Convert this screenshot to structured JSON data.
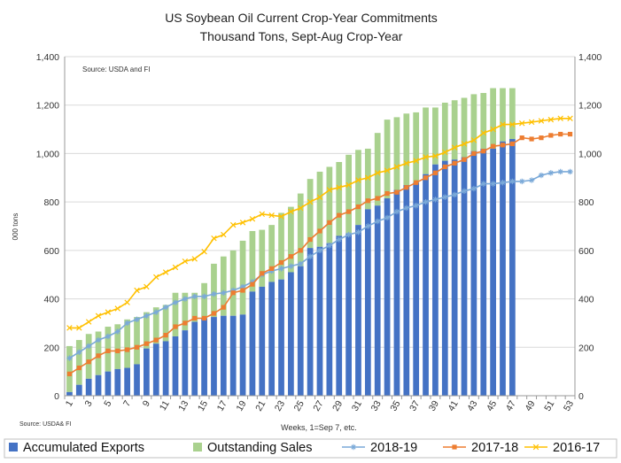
{
  "chart_data": {
    "type": "bar",
    "title": "US Soybean Oil Current Crop-Year Commitments",
    "subtitle": "Thousand Tons, Sept-Aug Crop-Year",
    "xlabel": "Weeks, 1=Sep 7, etc.",
    "ylabel": "000 tons",
    "source_inside": "Source: USDA and  FI",
    "source_footer": "Source: USDA& FI",
    "ylim": [
      0,
      1400
    ],
    "y_ticks": [
      "0",
      "200",
      "400",
      "600",
      "800",
      "1,000",
      "1,200",
      "1,400"
    ],
    "y_tick_values": [
      0,
      200,
      400,
      600,
      800,
      1000,
      1200,
      1400
    ],
    "x_ticks": [
      "1",
      "3",
      "5",
      "7",
      "9",
      "11",
      "13",
      "15",
      "17",
      "19",
      "21",
      "23",
      "25",
      "27",
      "29",
      "31",
      "33",
      "35",
      "37",
      "39",
      "41",
      "43",
      "45",
      "47",
      "49",
      "51",
      "53"
    ],
    "weeks": [
      1,
      2,
      3,
      4,
      5,
      6,
      7,
      8,
      9,
      10,
      11,
      12,
      13,
      14,
      15,
      16,
      17,
      18,
      19,
      20,
      21,
      22,
      23,
      24,
      25,
      26,
      27,
      28,
      29,
      30,
      31,
      32,
      33,
      34,
      35,
      36,
      37,
      38,
      39,
      40,
      41,
      42,
      43,
      44,
      45,
      46,
      47,
      48,
      49,
      50,
      51,
      52,
      53
    ],
    "grid": "horizontal",
    "legend_position": "bottom",
    "colors": {
      "accumulated": "#4472C4",
      "outstanding": "#A9D18E",
      "s2018": "#7AA9D8",
      "s2017": "#ED7D31",
      "s2016": "#FFC000",
      "grid": "#d9d9d9",
      "axis": "#999999"
    },
    "series": [
      {
        "name": "Accumulated Exports",
        "kind": "bar",
        "values": [
          15,
          45,
          70,
          85,
          100,
          110,
          115,
          130,
          195,
          215,
          225,
          245,
          270,
          305,
          320,
          325,
          330,
          330,
          335,
          430,
          450,
          470,
          480,
          510,
          535,
          610,
          615,
          630,
          660,
          670,
          705,
          770,
          785,
          815,
          850,
          870,
          880,
          915,
          955,
          970,
          975,
          985,
          1010,
          1020,
          1020,
          1050,
          1060
        ]
      },
      {
        "name": "Outstanding Sales",
        "kind": "stack",
        "totals": [
          205,
          230,
          255,
          265,
          285,
          295,
          315,
          325,
          345,
          365,
          375,
          425,
          425,
          425,
          465,
          545,
          575,
          600,
          640,
          680,
          685,
          705,
          755,
          780,
          835,
          895,
          925,
          945,
          965,
          995,
          1015,
          1020,
          1085,
          1140,
          1150,
          1165,
          1170,
          1190,
          1190,
          1210,
          1220,
          1230,
          1245,
          1250,
          1270,
          1270,
          1270
        ]
      },
      {
        "name": "2018-19",
        "kind": "line",
        "values": [
          155,
          180,
          205,
          230,
          245,
          265,
          300,
          315,
          330,
          345,
          365,
          385,
          400,
          410,
          410,
          420,
          425,
          435,
          450,
          470,
          500,
          515,
          525,
          535,
          545,
          575,
          600,
          620,
          645,
          665,
          675,
          700,
          720,
          735,
          760,
          775,
          785,
          800,
          810,
          820,
          830,
          845,
          855,
          875,
          875,
          880,
          885,
          885,
          890,
          910,
          920,
          925,
          925
        ]
      },
      {
        "name": "2017-18",
        "kind": "line",
        "values": [
          90,
          115,
          140,
          165,
          185,
          185,
          190,
          200,
          215,
          230,
          250,
          285,
          300,
          320,
          320,
          340,
          365,
          425,
          435,
          460,
          505,
          525,
          550,
          575,
          600,
          645,
          680,
          715,
          745,
          760,
          780,
          805,
          815,
          835,
          840,
          860,
          880,
          900,
          920,
          945,
          960,
          975,
          1000,
          1010,
          1030,
          1035,
          1040,
          1065,
          1060,
          1065,
          1075,
          1080,
          1080
        ]
      },
      {
        "name": "2016-17",
        "kind": "line",
        "values": [
          280,
          280,
          305,
          330,
          345,
          360,
          385,
          435,
          450,
          490,
          510,
          530,
          555,
          565,
          595,
          650,
          665,
          705,
          715,
          730,
          750,
          745,
          740,
          760,
          775,
          800,
          820,
          850,
          860,
          870,
          890,
          900,
          920,
          930,
          945,
          960,
          970,
          985,
          990,
          1005,
          1025,
          1040,
          1055,
          1085,
          1100,
          1120,
          1120,
          1125,
          1130,
          1135,
          1140,
          1145,
          1145
        ]
      }
    ]
  }
}
